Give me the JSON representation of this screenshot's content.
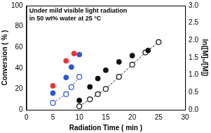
{
  "chart_data": {
    "type": "scatter",
    "annotations": [
      "Under mild visible light radiation",
      "in 50 wt% water at 25 °C"
    ],
    "x_label": "Radiation Time ( min )",
    "y_label": "Conversion ( % )",
    "y2_label": "ln([M]₀/[M])",
    "xlim": [
      0,
      30
    ],
    "xticks": [
      0,
      5,
      10,
      15,
      20,
      25,
      30
    ],
    "ylim": [
      0,
      100
    ],
    "yticks": [
      0,
      20,
      40,
      60,
      80,
      100
    ],
    "y2lim": [
      0,
      3.0
    ],
    "y2ticks": [
      {
        "value": 0,
        "label": "0.0"
      },
      {
        "value": 0.5,
        "label": "0.5"
      },
      {
        "value": 1.0,
        "label": "1.0"
      },
      {
        "value": 1.5,
        "label": "1.5"
      },
      {
        "value": 2.0,
        "label": "2.0"
      },
      {
        "value": 2.5,
        "label": "2.5"
      },
      {
        "value": 3.0,
        "label": "3.0"
      }
    ],
    "grid": false,
    "series": [
      {
        "color": "#e8333a",
        "marker": "circle",
        "line_style": "none",
        "x": [
          5,
          7.5,
          9
        ],
        "values": [
          23,
          47,
          54
        ]
      },
      {
        "color": "#2f55d4",
        "marker": "circle",
        "line_style": "none",
        "x": [
          5,
          7.5,
          8.5,
          10
        ],
        "values": [
          16,
          31,
          41,
          53
        ]
      },
      {
        "color": "#111111",
        "marker": "circle",
        "line_style": "none",
        "x": [
          10,
          12,
          13.5,
          15,
          17.5,
          20,
          23
        ],
        "values": [
          9,
          22,
          30,
          38,
          46,
          52,
          57
        ]
      },
      {
        "color": "#2f55d4",
        "marker": "circle_open",
        "line_style": "dashed",
        "axis": "y2",
        "x": [
          5,
          7.5,
          8.5,
          10
        ],
        "values": [
          0.2,
          0.45,
          0.65,
          0.95
        ]
      },
      {
        "color": "#111111",
        "marker": "circle_open",
        "line_style": "dashed",
        "axis": "y2",
        "x": [
          10,
          12,
          13.5,
          15,
          17.5,
          20,
          22.5,
          25
        ],
        "values": [
          0.1,
          0.3,
          0.45,
          0.6,
          0.95,
          1.3,
          1.65,
          1.95
        ]
      }
    ]
  }
}
